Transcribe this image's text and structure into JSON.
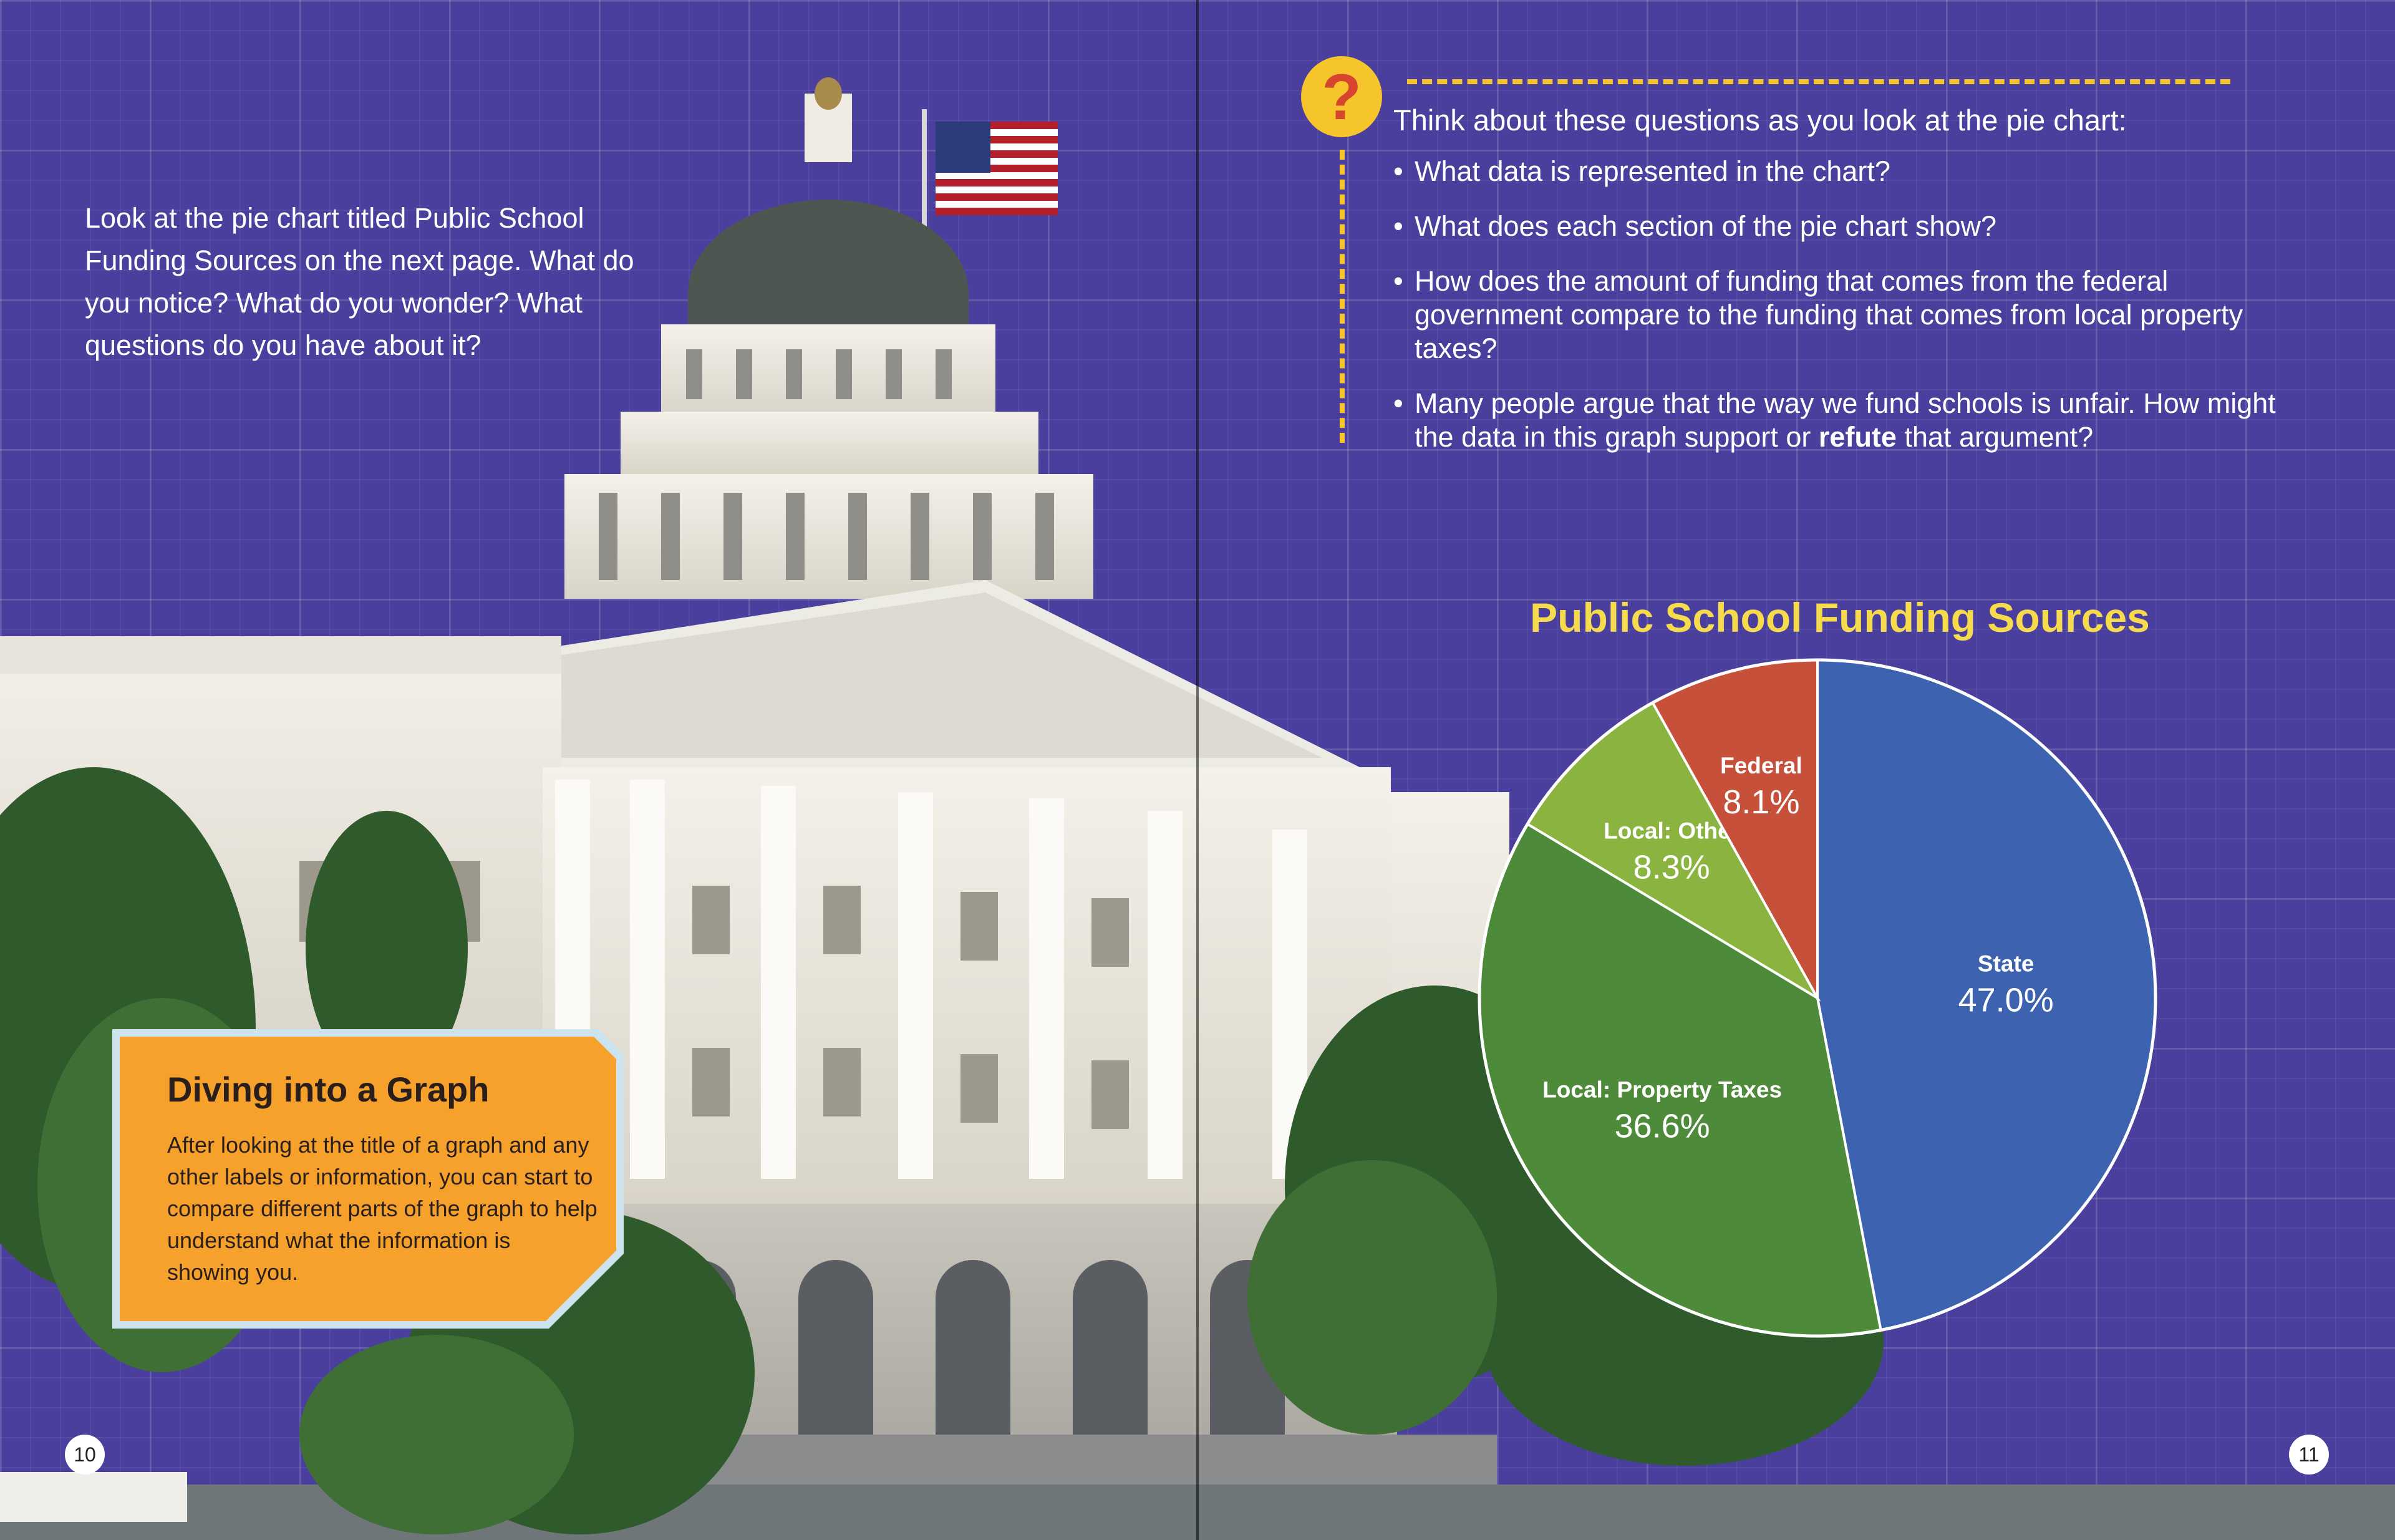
{
  "left_page": {
    "intro_text": "Look at the pie chart titled Public School Funding Sources on the next page. What do you notice? What do you wonder? What questions do you have about it?",
    "callout": {
      "title": "Diving into a Graph",
      "body": "After looking at the title of a graph and any other labels or information, you can start to compare different parts of the graph to help understand what the information is showing you."
    },
    "page_number": "10"
  },
  "right_page": {
    "question_badge": "?",
    "questions_intro": "Think about these questions as you look at the pie chart:",
    "questions": [
      "What data is represented in the chart?",
      "What does each section of the pie chart show?",
      "How does the amount of funding that comes from the federal government compare to the funding that comes from local property taxes?"
    ],
    "last_question": {
      "before": "Many people argue that the way we fund schools is unfair. How might the data in this graph support or ",
      "bold": "refute",
      "after": " that argument?"
    },
    "page_number": "11"
  },
  "chart_data": {
    "type": "pie",
    "title": "Public School Funding Sources",
    "slices": [
      {
        "label": "State",
        "value": 47.0,
        "display": "47.0%",
        "color": "#3d62b0"
      },
      {
        "label": "Local: Property Taxes",
        "value": 36.6,
        "display": "36.6%",
        "color": "#4d8a39"
      },
      {
        "label": "Local: Other",
        "value": 8.3,
        "display": "8.3%",
        "color": "#8ab43f"
      },
      {
        "label": "Federal",
        "value": 8.1,
        "display": "8.1%",
        "color": "#c6503a"
      }
    ],
    "start_angle_deg": 0,
    "direction": "clockwise"
  },
  "colors": {
    "background": "#4b3f9e",
    "accent_yellow": "#f6c42b",
    "callout_orange": "#f6a12b",
    "callout_border": "#cde3ee"
  }
}
